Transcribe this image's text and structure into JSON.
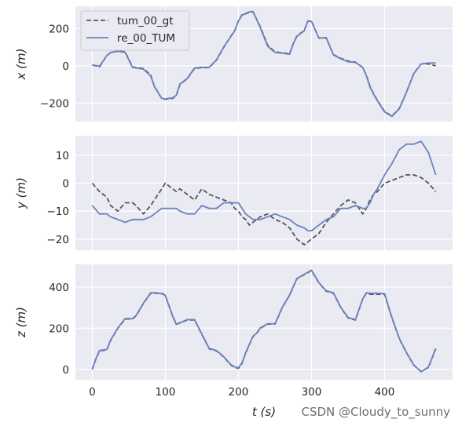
{
  "chart_data": {
    "type": "line",
    "xlabel": "t (s)",
    "xlim": [
      -23,
      493
    ],
    "xticks": [
      0,
      100,
      200,
      300,
      400
    ],
    "grid": true,
    "legend": {
      "placement": "top-left",
      "entries": [
        {
          "label": "tum_00_gt",
          "style": "dashed",
          "color": "#55555f"
        },
        {
          "label": "re_00_TUM",
          "style": "solid",
          "color": "#6b82bd"
        }
      ]
    },
    "watermark": "CSDN @Cloudy_to_sunny",
    "subplots": [
      {
        "name": "x",
        "ylabel": "x (m)",
        "ylim": [
          -300,
          320
        ],
        "yticks": [
          -200,
          0,
          200
        ],
        "series": [
          {
            "name": "tum_00_gt",
            "x": [
              0,
              10,
              20,
              25,
              35,
              45,
              55,
              60,
              70,
              80,
              85,
              95,
              100,
              110,
              115,
              120,
              130,
              140,
              150,
              160,
              170,
              180,
              190,
              195,
              200,
              205,
              210,
              215,
              220,
              225,
              230,
              240,
              250,
              260,
              270,
              275,
              280,
              290,
              295,
              300,
              310,
              320,
              330,
              340,
              350,
              360,
              370,
              375,
              380,
              385,
              390,
              400,
              410,
              420,
              430,
              440,
              450,
              460,
              470
            ],
            "y": [
              5,
              -5,
              55,
              70,
              80,
              75,
              -5,
              -10,
              -15,
              -50,
              -110,
              -175,
              -180,
              -175,
              -160,
              -100,
              -70,
              -15,
              -10,
              -10,
              30,
              100,
              160,
              190,
              240,
              275,
              280,
              288,
              290,
              250,
              210,
              110,
              75,
              70,
              65,
              120,
              160,
              190,
              240,
              240,
              150,
              150,
              60,
              40,
              25,
              20,
              -10,
              -50,
              -110,
              -150,
              -185,
              -245,
              -270,
              -230,
              -140,
              -40,
              10,
              10,
              0
            ]
          },
          {
            "name": "re_00_TUM",
            "x": [
              0,
              10,
              20,
              25,
              35,
              45,
              55,
              60,
              70,
              80,
              85,
              95,
              100,
              110,
              115,
              120,
              130,
              140,
              150,
              160,
              170,
              180,
              190,
              195,
              200,
              205,
              210,
              215,
              220,
              225,
              230,
              240,
              250,
              260,
              270,
              275,
              280,
              290,
              295,
              300,
              310,
              320,
              330,
              340,
              350,
              360,
              370,
              375,
              380,
              385,
              390,
              400,
              410,
              420,
              430,
              440,
              450,
              460,
              470
            ],
            "y": [
              5,
              -2,
              55,
              72,
              78,
              72,
              -8,
              -12,
              -18,
              -55,
              -112,
              -175,
              -178,
              -172,
              -158,
              -98,
              -68,
              -12,
              -8,
              -8,
              32,
              102,
              158,
              188,
              242,
              272,
              282,
              290,
              292,
              248,
              205,
              105,
              72,
              68,
              62,
              118,
              158,
              188,
              242,
              238,
              148,
              152,
              58,
              38,
              22,
              18,
              -8,
              -52,
              -115,
              -152,
              -188,
              -248,
              -272,
              -232,
              -142,
              -42,
              10,
              15,
              15
            ]
          }
        ]
      },
      {
        "name": "y",
        "ylabel": "y (m)",
        "ylim": [
          -24,
          17
        ],
        "yticks": [
          -20,
          -10,
          0,
          10
        ],
        "series": [
          {
            "name": "tum_00_gt",
            "x": [
              0,
              10,
              20,
              25,
              35,
              45,
              55,
              60,
              70,
              80,
              85,
              95,
              100,
              110,
              115,
              120,
              130,
              140,
              150,
              160,
              170,
              180,
              190,
              195,
              200,
              205,
              210,
              215,
              220,
              225,
              230,
              240,
              250,
              260,
              270,
              275,
              280,
              290,
              295,
              300,
              310,
              320,
              330,
              340,
              350,
              360,
              370,
              375,
              380,
              385,
              390,
              400,
              410,
              420,
              430,
              440,
              450,
              460,
              470
            ],
            "y": [
              0,
              -3,
              -5,
              -8,
              -10,
              -7,
              -7,
              -8,
              -11,
              -8,
              -6,
              -2,
              0,
              -2,
              -3,
              -2,
              -4,
              -6,
              -2,
              -4,
              -5,
              -6,
              -7,
              -9,
              -10,
              -12,
              -13,
              -15,
              -14,
              -13,
              -12,
              -11,
              -13,
              -14,
              -16,
              -18,
              -20,
              -22,
              -21,
              -20,
              -18,
              -14,
              -11,
              -8,
              -6,
              -7,
              -11,
              -9,
              -6,
              -4,
              -3,
              0,
              1,
              2,
              3,
              3,
              2,
              0,
              -3
            ]
          },
          {
            "name": "re_00_TUM",
            "x": [
              0,
              10,
              20,
              25,
              35,
              45,
              55,
              60,
              70,
              80,
              85,
              95,
              100,
              110,
              115,
              120,
              130,
              140,
              150,
              160,
              170,
              180,
              190,
              195,
              200,
              205,
              210,
              215,
              220,
              225,
              230,
              240,
              250,
              260,
              270,
              275,
              280,
              290,
              295,
              300,
              310,
              320,
              330,
              340,
              350,
              360,
              370,
              375,
              380,
              385,
              390,
              400,
              410,
              420,
              430,
              440,
              450,
              460,
              470
            ],
            "y": [
              -8,
              -11,
              -11,
              -12,
              -13,
              -14,
              -13,
              -13,
              -13,
              -12,
              -11,
              -9,
              -9,
              -9,
              -9,
              -10,
              -11,
              -11,
              -8,
              -9,
              -9,
              -7,
              -7,
              -7,
              -7,
              -9,
              -11,
              -12,
              -13,
              -13,
              -13,
              -12,
              -11,
              -12,
              -13,
              -14,
              -15,
              -16,
              -17,
              -17,
              -15,
              -13,
              -12,
              -9,
              -9,
              -8,
              -9,
              -9,
              -7,
              -4,
              -2,
              3,
              7,
              12,
              14,
              14,
              15,
              11,
              3
            ]
          }
        ]
      },
      {
        "name": "z",
        "ylabel": "z (m)",
        "ylim": [
          -50,
          510
        ],
        "yticks": [
          0,
          200,
          400
        ],
        "series": [
          {
            "name": "tum_00_gt",
            "x": [
              0,
              5,
              10,
              20,
              25,
              35,
              45,
              55,
              60,
              70,
              80,
              85,
              95,
              100,
              110,
              115,
              120,
              130,
              140,
              150,
              160,
              170,
              180,
              190,
              195,
              200,
              205,
              210,
              215,
              220,
              225,
              230,
              240,
              250,
              260,
              270,
              275,
              280,
              290,
              295,
              300,
              310,
              320,
              330,
              340,
              350,
              360,
              370,
              375,
              380,
              385,
              390,
              400,
              410,
              420,
              430,
              440,
              450,
              460,
              470
            ],
            "y": [
              0,
              50,
              90,
              95,
              140,
              200,
              245,
              245,
              260,
              320,
              370,
              370,
              370,
              360,
              260,
              220,
              225,
              240,
              240,
              170,
              100,
              90,
              60,
              20,
              10,
              5,
              30,
              80,
              120,
              160,
              175,
              200,
              220,
              220,
              300,
              360,
              400,
              440,
              460,
              470,
              480,
              420,
              380,
              370,
              300,
              250,
              240,
              340,
              370,
              365,
              365,
              365,
              365,
              250,
              150,
              80,
              20,
              -10,
              10,
              100
            ]
          },
          {
            "name": "re_00_TUM",
            "x": [
              0,
              5,
              10,
              20,
              25,
              35,
              45,
              55,
              60,
              70,
              80,
              85,
              95,
              100,
              110,
              115,
              120,
              130,
              140,
              150,
              160,
              170,
              180,
              190,
              195,
              200,
              205,
              210,
              215,
              220,
              225,
              230,
              240,
              250,
              260,
              270,
              275,
              280,
              290,
              295,
              300,
              310,
              320,
              330,
              340,
              350,
              360,
              370,
              375,
              380,
              385,
              390,
              400,
              410,
              420,
              430,
              440,
              450,
              460,
              470
            ],
            "y": [
              2,
              52,
              92,
              97,
              142,
              202,
              247,
              247,
              262,
              322,
              372,
              372,
              368,
              358,
              258,
              218,
              227,
              242,
              242,
              172,
              102,
              92,
              62,
              22,
              12,
              8,
              32,
              82,
              122,
              162,
              177,
              202,
              222,
              222,
              302,
              362,
              402,
              442,
              462,
              472,
              482,
              422,
              382,
              372,
              302,
              252,
              242,
              342,
              372,
              370,
              370,
              370,
              368,
              252,
              152,
              82,
              22,
              -12,
              12,
              102
            ]
          }
        ]
      }
    ]
  }
}
